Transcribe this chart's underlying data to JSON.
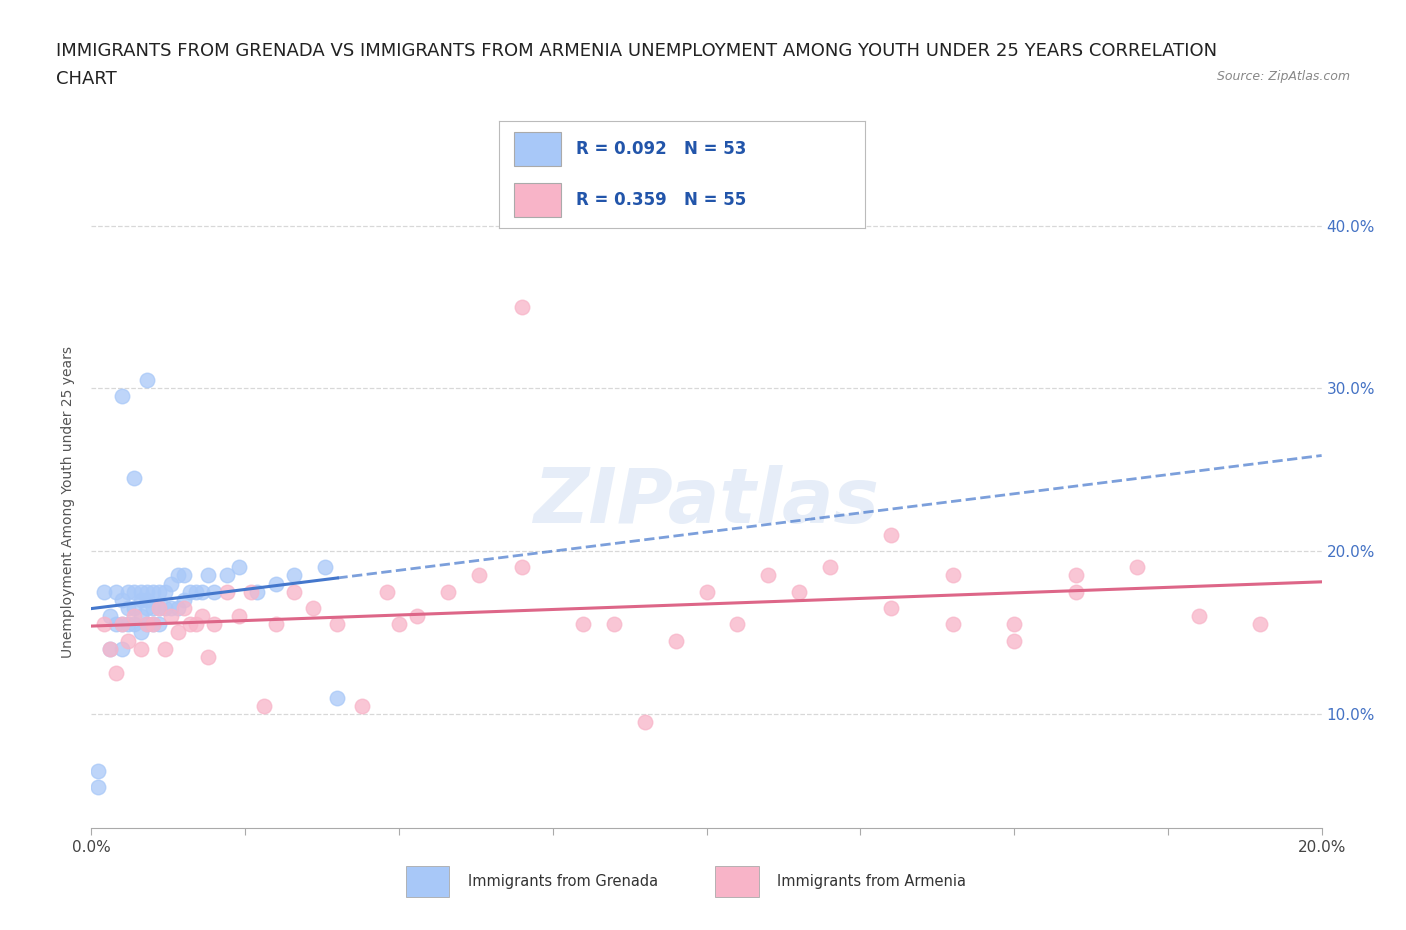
{
  "title_line1": "IMMIGRANTS FROM GRENADA VS IMMIGRANTS FROM ARMENIA UNEMPLOYMENT AMONG YOUTH UNDER 25 YEARS CORRELATION",
  "title_line2": "CHART",
  "source": "Source: ZipAtlas.com",
  "ylabel": "Unemployment Among Youth under 25 years",
  "watermark": "ZIPatlas",
  "series1_label": "Immigrants from Grenada",
  "series2_label": "Immigrants from Armenia",
  "series1_color": "#a8c8f8",
  "series2_color": "#f8b4c8",
  "series1_line_color": "#4477cc",
  "series2_line_color": "#dd6688",
  "legend_text1": "R = 0.092   N = 53",
  "legend_text2": "R = 0.359   N = 55",
  "xlim": [
    0.0,
    0.2
  ],
  "ylim": [
    0.03,
    0.43
  ],
  "xtick_positions": [
    0.0,
    0.025,
    0.05,
    0.075,
    0.1,
    0.125,
    0.15,
    0.175,
    0.2
  ],
  "yticks": [
    0.1,
    0.2,
    0.3,
    0.4
  ],
  "right_ytick_labels": [
    "10.0%",
    "20.0%",
    "30.0%",
    "40.0%"
  ],
  "background_color": "#ffffff",
  "grid_color": "#d8d8d8",
  "title_fontsize": 13,
  "tick_fontsize": 11,
  "grenada_x": [
    0.001,
    0.001,
    0.002,
    0.003,
    0.003,
    0.004,
    0.004,
    0.005,
    0.005,
    0.005,
    0.006,
    0.006,
    0.006,
    0.007,
    0.007,
    0.007,
    0.008,
    0.008,
    0.008,
    0.008,
    0.009,
    0.009,
    0.009,
    0.009,
    0.01,
    0.01,
    0.01,
    0.011,
    0.011,
    0.011,
    0.012,
    0.012,
    0.013,
    0.013,
    0.014,
    0.014,
    0.015,
    0.015,
    0.016,
    0.017,
    0.018,
    0.019,
    0.02,
    0.022,
    0.024,
    0.027,
    0.03,
    0.033,
    0.038,
    0.04,
    0.005,
    0.007,
    0.009
  ],
  "grenada_y": [
    0.055,
    0.065,
    0.175,
    0.14,
    0.16,
    0.155,
    0.175,
    0.14,
    0.155,
    0.17,
    0.155,
    0.165,
    0.175,
    0.155,
    0.165,
    0.175,
    0.15,
    0.16,
    0.17,
    0.175,
    0.155,
    0.165,
    0.17,
    0.175,
    0.155,
    0.165,
    0.175,
    0.155,
    0.165,
    0.175,
    0.165,
    0.175,
    0.165,
    0.18,
    0.165,
    0.185,
    0.17,
    0.185,
    0.175,
    0.175,
    0.175,
    0.185,
    0.175,
    0.185,
    0.19,
    0.175,
    0.18,
    0.185,
    0.19,
    0.11,
    0.295,
    0.245,
    0.305
  ],
  "armenia_x": [
    0.002,
    0.003,
    0.004,
    0.005,
    0.006,
    0.007,
    0.008,
    0.009,
    0.01,
    0.011,
    0.012,
    0.013,
    0.014,
    0.015,
    0.016,
    0.017,
    0.018,
    0.019,
    0.02,
    0.022,
    0.024,
    0.026,
    0.028,
    0.03,
    0.033,
    0.036,
    0.04,
    0.044,
    0.048,
    0.053,
    0.058,
    0.063,
    0.07,
    0.08,
    0.09,
    0.1,
    0.11,
    0.12,
    0.13,
    0.14,
    0.15,
    0.16,
    0.17,
    0.18,
    0.19,
    0.14,
    0.15,
    0.16,
    0.085,
    0.095,
    0.105,
    0.115,
    0.13,
    0.05,
    0.07
  ],
  "armenia_y": [
    0.155,
    0.14,
    0.125,
    0.155,
    0.145,
    0.16,
    0.14,
    0.155,
    0.155,
    0.165,
    0.14,
    0.16,
    0.15,
    0.165,
    0.155,
    0.155,
    0.16,
    0.135,
    0.155,
    0.175,
    0.16,
    0.175,
    0.105,
    0.155,
    0.175,
    0.165,
    0.155,
    0.105,
    0.175,
    0.16,
    0.175,
    0.185,
    0.19,
    0.155,
    0.095,
    0.175,
    0.185,
    0.19,
    0.21,
    0.185,
    0.155,
    0.185,
    0.19,
    0.16,
    0.155,
    0.155,
    0.145,
    0.175,
    0.155,
    0.145,
    0.155,
    0.175,
    0.165,
    0.155,
    0.35
  ]
}
